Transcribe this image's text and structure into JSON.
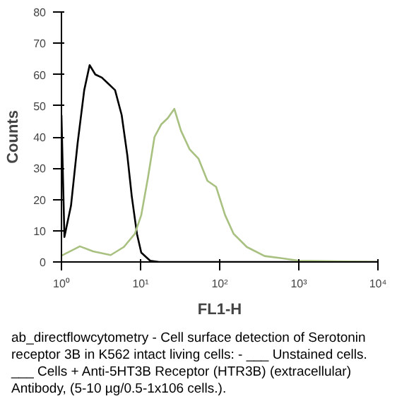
{
  "chart_data": {
    "type": "line",
    "xlabel": "FL1-H",
    "ylabel": "Counts",
    "log": "x",
    "grid": false,
    "marker": "none",
    "line_style": "solid",
    "xlim": [
      1,
      10000
    ],
    "ylim": [
      0,
      80
    ],
    "xticks": [
      {
        "value": 1,
        "label": "10⁰"
      },
      {
        "value": 10,
        "label": "10¹"
      },
      {
        "value": 100,
        "label": "10²"
      },
      {
        "value": 1000,
        "label": "10³"
      },
      {
        "value": 10000,
        "label": "10⁴"
      }
    ],
    "yticks": [
      0,
      10,
      20,
      30,
      40,
      50,
      60,
      70,
      80
    ],
    "series": [
      {
        "color": "#000000",
        "x": [
          1,
          1.09,
          1.32,
          1.6,
          1.94,
          2.27,
          2.68,
          3.24,
          3.93,
          4.76,
          5.77,
          6.81,
          7.74,
          9.0,
          10.2,
          13.2,
          17.1,
          10000
        ],
        "values": [
          47,
          8,
          18,
          38,
          55,
          63,
          60,
          59,
          57,
          55,
          47,
          34,
          21,
          9,
          3,
          0.4,
          0,
          0
        ]
      },
      {
        "color": "#a8c080",
        "x": [
          1,
          1.71,
          2.51,
          4.19,
          6.15,
          8.46,
          10.2,
          12.4,
          15.0,
          18.2,
          22.0,
          26.7,
          32.4,
          41.8,
          54.1,
          69.9,
          90.3,
          117,
          150,
          220,
          370,
          610,
          1000,
          10000
        ],
        "values": [
          2,
          5,
          3.4,
          2.2,
          4.8,
          9,
          15,
          27,
          40,
          44,
          46,
          49,
          42,
          36,
          33,
          26,
          24,
          15,
          9,
          4.8,
          1.9,
          1.2,
          0.4,
          0
        ]
      }
    ],
    "annotations": [
      "ab_directflowcytometry - Cell surface detection of Serotonin receptor 3B in K562 intact living cells: - ___ Unstained cells. ___ Cells + Anti-5HT3B Receptor (HTR3B) (extracellular) Antibody, (5-10 µg/0.5-1x106 cells.)."
    ]
  }
}
